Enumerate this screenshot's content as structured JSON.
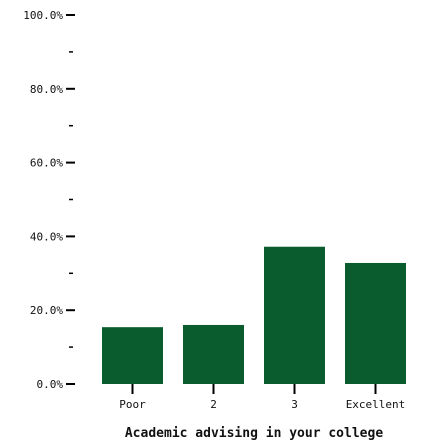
{
  "chart_data": {
    "type": "bar",
    "categories": [
      "Poor",
      "2",
      "3",
      "Excellent"
    ],
    "values": [
      15.4,
      16.0,
      37.2,
      32.8
    ],
    "xlabel": "Academic advising in your college",
    "ylabel": "",
    "ylim": [
      0,
      100
    ],
    "yticks": [
      "0.0%",
      "20.0%",
      "40.0%",
      "60.0%",
      "80.0%",
      "100.0%"
    ],
    "bar_color": "#0a5c2e",
    "grid": false
  }
}
